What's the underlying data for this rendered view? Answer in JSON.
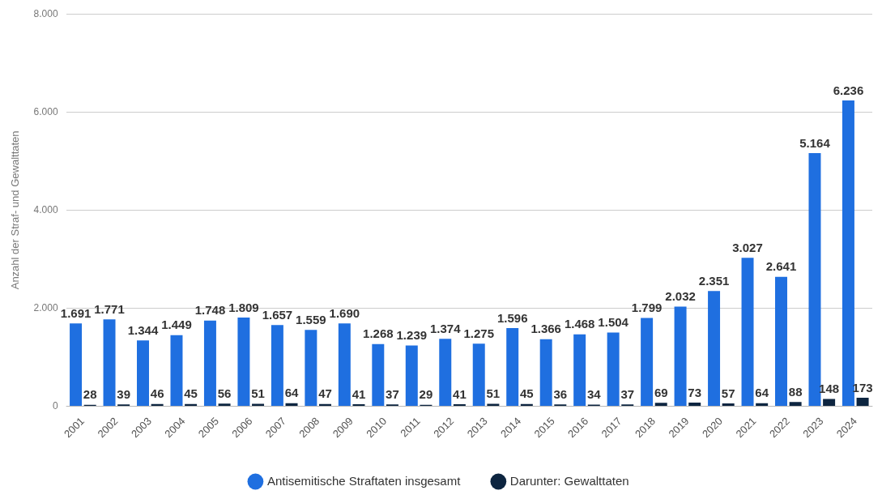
{
  "chart_data": {
    "type": "bar",
    "ylabel": "Anzahl der Straf- und Gewalttaten",
    "categories": [
      "2001",
      "2002",
      "2003",
      "2004",
      "2005",
      "2006",
      "2007",
      "2008",
      "2009",
      "2010",
      "2011",
      "2012",
      "2013",
      "2014",
      "2015",
      "2016",
      "2017",
      "2018",
      "2019",
      "2020",
      "2021",
      "2022",
      "2023",
      "2024"
    ],
    "series": [
      {
        "name": "Antisemitische Straftaten insgesamt",
        "color": "#1f6fe0",
        "values": [
          1691,
          1771,
          1344,
          1449,
          1748,
          1809,
          1657,
          1559,
          1690,
          1268,
          1239,
          1374,
          1275,
          1596,
          1366,
          1468,
          1504,
          1799,
          2032,
          2351,
          3027,
          2641,
          5164,
          6236
        ],
        "value_labels": [
          "1.691",
          "1.771",
          "1.344",
          "1.449",
          "1.748",
          "1.809",
          "1.657",
          "1.559",
          "1.690",
          "1.268",
          "1.239",
          "1.374",
          "1.275",
          "1.596",
          "1.366",
          "1.468",
          "1.504",
          "1.799",
          "2.032",
          "2.351",
          "3.027",
          "2.641",
          "5.164",
          "6.236"
        ]
      },
      {
        "name": "Darunter: Gewalttaten",
        "color": "#0d2540",
        "values": [
          28,
          39,
          46,
          45,
          56,
          51,
          64,
          47,
          41,
          37,
          29,
          41,
          51,
          45,
          36,
          34,
          37,
          69,
          73,
          57,
          64,
          88,
          148,
          173
        ],
        "value_labels": [
          "28",
          "39",
          "46",
          "45",
          "56",
          "51",
          "64",
          "47",
          "41",
          "37",
          "29",
          "41",
          "51",
          "45",
          "36",
          "34",
          "37",
          "69",
          "73",
          "57",
          "64",
          "88",
          "148",
          "173"
        ]
      }
    ],
    "ylim": [
      0,
      8000
    ],
    "yticks": [
      {
        "value": 0,
        "label": "0"
      },
      {
        "value": 2000,
        "label": "2.000"
      },
      {
        "value": 4000,
        "label": "4.000"
      },
      {
        "value": 6000,
        "label": "6.000"
      },
      {
        "value": 8000,
        "label": "8.000"
      }
    ],
    "grid": "y",
    "legend": "bottom"
  }
}
